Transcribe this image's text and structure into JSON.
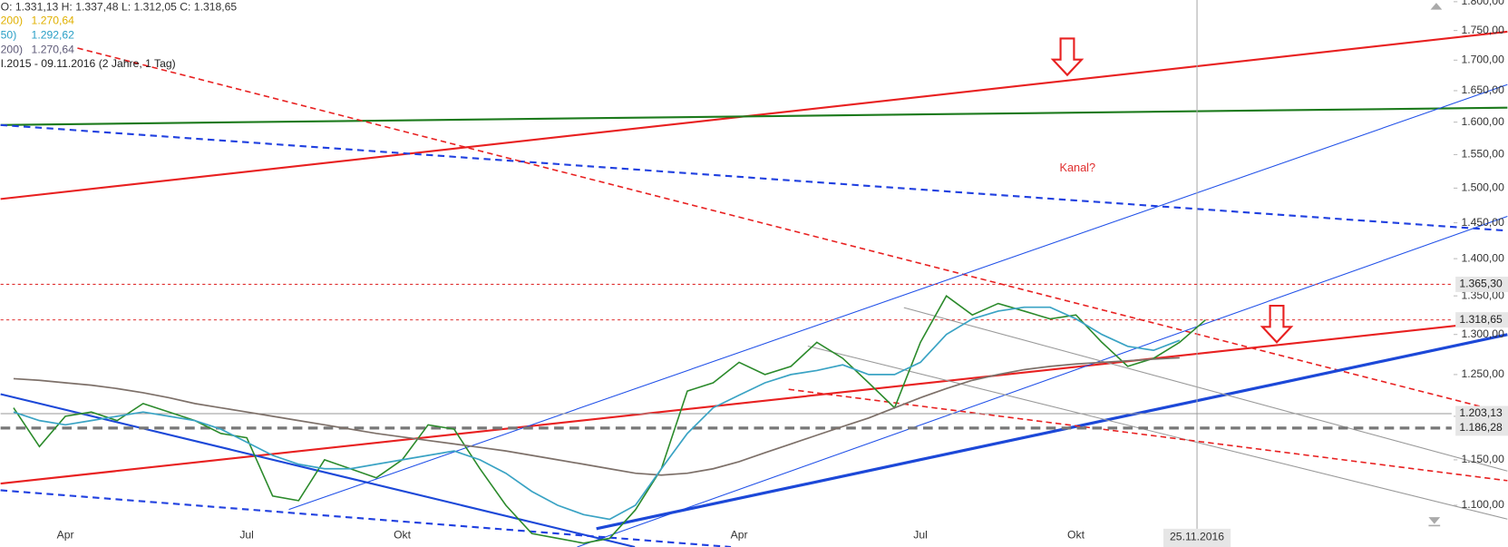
{
  "chart_data": {
    "type": "line",
    "log_scale": true,
    "ohlc": "O: 1.331,13   H: 1.337,48   L: 1.312,05   C: 1.318,65",
    "period": "I.2015 - 09.11.2016   (2 Jahre, 1 Tag)",
    "legend": [
      {
        "name": "200)",
        "value": "1.270,64",
        "color": "#e0b000"
      },
      {
        "name": "50)",
        "value": "1.292,62",
        "color": "#2a9fc6"
      },
      {
        "name": "200)",
        "value": "1.270,64",
        "color": "#5e5a78"
      }
    ],
    "annotation": "Kanal?",
    "cursor_date": "25.11.2016",
    "categories": [
      null,
      null,
      "Apr",
      null,
      null,
      null,
      null,
      null,
      null,
      "Jul",
      null,
      null,
      null,
      null,
      null,
      "Okt",
      null,
      null,
      null,
      null,
      null,
      null,
      null,
      null,
      null,
      null,
      null,
      null,
      "Apr",
      null,
      null,
      null,
      null,
      null,
      null,
      "Jul",
      null,
      null,
      null,
      null,
      null,
      "Okt",
      null,
      null,
      null,
      null,
      null,
      null,
      null,
      null,
      null,
      null,
      null,
      null,
      null,
      null
    ],
    "series": [
      {
        "color": "#2b8a2b",
        "values": [
          1210,
          1165,
          1200,
          1205,
          1195,
          1215,
          1205,
          1195,
          1180,
          1175,
          1110,
          1105,
          1150,
          1140,
          1130,
          1150,
          1190,
          1185,
          1140,
          1100,
          1070,
          1065,
          1060,
          1065,
          1095,
          1140,
          1230,
          1240,
          1265,
          1250,
          1260,
          1290,
          1270,
          1240,
          1210,
          1290,
          1350,
          1325,
          1340,
          1330,
          1320,
          1325,
          1290,
          1260,
          1270,
          1290,
          1318.65,
          null,
          null,
          null,
          null,
          null,
          null,
          null,
          null,
          null
        ]
      },
      {
        "color": "#7d7069",
        "values": [
          1245,
          1243,
          1240,
          1237,
          1233,
          1228,
          1222,
          1215,
          1210,
          1205,
          1200,
          1195,
          1190,
          1185,
          1180,
          1176,
          1172,
          1168,
          1164,
          1160,
          1155,
          1150,
          1145,
          1140,
          1135,
          1133,
          1135,
          1140,
          1148,
          1158,
          1168,
          1178,
          1188,
          1198,
          1210,
          1222,
          1233,
          1243,
          1250,
          1256,
          1260,
          1263,
          1265,
          1267,
          1269,
          1270.64,
          null,
          null,
          null,
          null,
          null,
          null,
          null,
          null,
          null,
          null
        ]
      },
      {
        "color": "#3aa3c4",
        "values": [
          1205,
          1195,
          1190,
          1195,
          1200,
          1205,
          1200,
          1195,
          1185,
          1170,
          1155,
          1145,
          1140,
          1140,
          1145,
          1150,
          1155,
          1160,
          1150,
          1135,
          1115,
          1100,
          1090,
          1085,
          1100,
          1140,
          1180,
          1210,
          1225,
          1240,
          1250,
          1255,
          1262,
          1250,
          1250,
          1265,
          1300,
          1320,
          1330,
          1335,
          1335,
          1320,
          1300,
          1285,
          1280,
          1292.62,
          null,
          null,
          null,
          null,
          null,
          null,
          null,
          null,
          null,
          null
        ]
      }
    ],
    "levels": [
      {
        "value": 1365.3,
        "label": "1.365,30",
        "color": "#e03030",
        "style": "dashed"
      },
      {
        "value": 1318.65,
        "label": "1.318,65",
        "color": "#e03030",
        "style": "dashed"
      },
      {
        "value": 1203.13,
        "label": "1.203,13",
        "color": "#999999",
        "style": "solid"
      },
      {
        "value": 1186.28,
        "label": "1.186,28",
        "color": "#777777",
        "style": "thick-dashed"
      }
    ],
    "ylim": [
      1058,
      1803
    ],
    "yticks": [
      {
        "value": 1100,
        "label": "1.100,00"
      },
      {
        "value": 1150,
        "label": "1.150,00"
      },
      {
        "value": 1200,
        "label": "1.200,00"
      },
      {
        "value": 1250,
        "label": "1.250,00"
      },
      {
        "value": 1300,
        "label": "1.300,00"
      },
      {
        "value": 1350,
        "label": "1.350,00"
      },
      {
        "value": 1400,
        "label": "1.400,00"
      },
      {
        "value": 1450,
        "label": "1.450,00"
      },
      {
        "value": 1500,
        "label": "1.500,00"
      },
      {
        "value": 1550,
        "label": "1.550,00"
      },
      {
        "value": 1600,
        "label": "1.600,00"
      },
      {
        "value": 1650,
        "label": "1.650,00"
      },
      {
        "value": 1700,
        "label": "1.700,00"
      },
      {
        "value": 1750,
        "label": "1.750,00"
      },
      {
        "value": 1800,
        "label": "1.800,00"
      }
    ]
  }
}
